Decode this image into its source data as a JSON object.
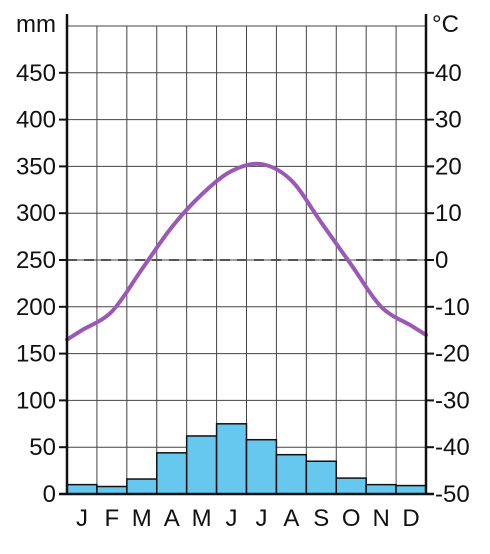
{
  "chart_data": {
    "type": "climate-diagram",
    "months": [
      "J",
      "F",
      "M",
      "A",
      "M",
      "J",
      "J",
      "A",
      "S",
      "O",
      "N",
      "D"
    ],
    "precipitation": {
      "unit_label": "mm",
      "axis": "left",
      "ylim": [
        0,
        500
      ],
      "ticks": [
        "0",
        "50",
        "100",
        "150",
        "200",
        "250",
        "300",
        "350",
        "400",
        "450"
      ],
      "values": [
        10,
        8,
        16,
        44,
        62,
        75,
        58,
        42,
        35,
        17,
        10,
        9
      ],
      "color": "#66c8ee",
      "type": "bar"
    },
    "temperature": {
      "unit_label": "°C",
      "axis": "right",
      "ylim": [
        -50,
        50
      ],
      "ticks": [
        "-50",
        "-40",
        "-30",
        "-20",
        "-10",
        "0",
        "10",
        "20",
        "30",
        "40"
      ],
      "values": [
        -15,
        -11,
        -2,
        7,
        14,
        19,
        20.5,
        17,
        8,
        -1,
        -10,
        -14
      ],
      "color": "#9b59b6",
      "type": "line"
    },
    "zero_line": {
      "value": 0,
      "style": "dashed"
    },
    "grid": true
  }
}
